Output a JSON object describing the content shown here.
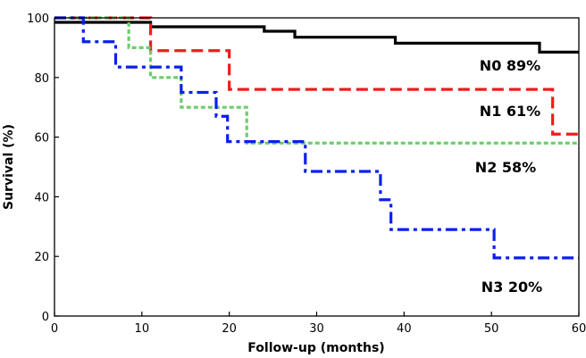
{
  "chart_data": {
    "type": "line",
    "subtype": "kaplan-meier step curves",
    "title": "",
    "xlabel": "Follow-up  (months)",
    "ylabel": "Survival (%)",
    "xlim": [
      0,
      60
    ],
    "ylim": [
      0,
      100
    ],
    "xticks": [
      0,
      10,
      20,
      30,
      40,
      50,
      60
    ],
    "yticks": [
      0,
      20,
      40,
      60,
      80,
      100
    ],
    "grid": false,
    "series": [
      {
        "name": "N0",
        "end_label": "N0 89%",
        "color": "#000000",
        "style": "solid",
        "steps": [
          [
            0,
            98.5
          ],
          [
            11,
            97
          ],
          [
            24,
            95.5
          ],
          [
            27.5,
            93.5
          ],
          [
            39,
            91.5
          ],
          [
            55.5,
            88.5
          ],
          [
            60,
            88.5
          ]
        ]
      },
      {
        "name": "N1",
        "end_label": "N1 61%",
        "color": "#ee1c1c",
        "style": "dashed",
        "steps": [
          [
            0,
            100
          ],
          [
            11,
            89
          ],
          [
            20,
            76
          ],
          [
            57,
            61
          ],
          [
            60,
            61
          ]
        ]
      },
      {
        "name": "N2",
        "end_label": "N2 58%",
        "color": "#6ccd6c",
        "style": "dotted",
        "steps": [
          [
            0,
            100
          ],
          [
            8.5,
            90
          ],
          [
            11,
            80
          ],
          [
            14.5,
            70
          ],
          [
            22,
            58
          ],
          [
            60,
            58
          ]
        ]
      },
      {
        "name": "N3",
        "end_label": "N3 20%",
        "color": "#0a1fee",
        "style": "dashdot",
        "steps": [
          [
            0,
            100
          ],
          [
            3.3,
            92
          ],
          [
            7,
            83.5
          ],
          [
            14.5,
            75
          ],
          [
            18.5,
            67
          ],
          [
            19.8,
            58.5
          ],
          [
            28.7,
            48.5
          ],
          [
            37.3,
            39
          ],
          [
            38.5,
            29
          ],
          [
            50.3,
            19.5
          ],
          [
            60,
            19.5
          ]
        ]
      }
    ]
  }
}
